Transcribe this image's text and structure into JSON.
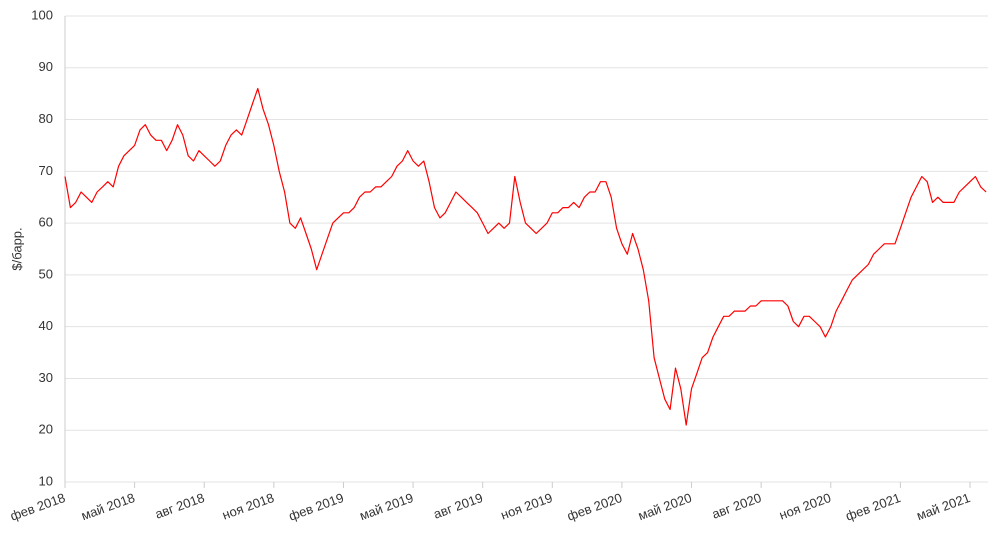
{
  "chart_data": {
    "type": "line",
    "y_label": "$/барр.",
    "color": "#ff0000",
    "ylim": [
      10,
      100
    ],
    "yticks": [
      10,
      20,
      30,
      40,
      50,
      60,
      70,
      80,
      90,
      100
    ],
    "grid": true,
    "categories": [
      "фев 2018",
      null,
      null,
      null,
      null,
      null,
      null,
      null,
      null,
      null,
      null,
      null,
      null,
      "май 2018",
      null,
      null,
      null,
      null,
      null,
      null,
      null,
      null,
      null,
      null,
      null,
      null,
      "авг 2018",
      null,
      null,
      null,
      null,
      null,
      null,
      null,
      null,
      null,
      null,
      null,
      null,
      "ноя 2018",
      null,
      null,
      null,
      null,
      null,
      null,
      null,
      null,
      null,
      null,
      null,
      null,
      "фев 2019",
      null,
      null,
      null,
      null,
      null,
      null,
      null,
      null,
      null,
      null,
      null,
      null,
      "май 2019",
      null,
      null,
      null,
      null,
      null,
      null,
      null,
      null,
      null,
      null,
      null,
      null,
      "авг 2019",
      null,
      null,
      null,
      null,
      null,
      null,
      null,
      null,
      null,
      null,
      null,
      null,
      "ноя 2019",
      null,
      null,
      null,
      null,
      null,
      null,
      null,
      null,
      null,
      null,
      null,
      null,
      "фев 2020",
      null,
      null,
      null,
      null,
      null,
      null,
      null,
      null,
      null,
      null,
      null,
      null,
      "май 2020",
      null,
      null,
      null,
      null,
      null,
      null,
      null,
      null,
      null,
      null,
      null,
      null,
      "авг 2020",
      null,
      null,
      null,
      null,
      null,
      null,
      null,
      null,
      null,
      null,
      null,
      null,
      "ноя 2020",
      null,
      null,
      null,
      null,
      null,
      null,
      null,
      null,
      null,
      null,
      null,
      null,
      "фев 2021",
      null,
      null,
      null,
      null,
      null,
      null,
      null,
      null,
      null,
      null,
      null,
      null,
      "май 2021",
      null,
      null,
      null
    ],
    "values": [
      69,
      63,
      64,
      66,
      65,
      64,
      66,
      67,
      68,
      67,
      71,
      73,
      74,
      75,
      78,
      79,
      77,
      76,
      76,
      74,
      76,
      79,
      77,
      73,
      72,
      74,
      73,
      72,
      71,
      72,
      75,
      77,
      78,
      77,
      80,
      83,
      86,
      82,
      79,
      75,
      70,
      66,
      60,
      59,
      61,
      58,
      55,
      51,
      54,
      57,
      60,
      61,
      62,
      62,
      63,
      65,
      66,
      66,
      67,
      67,
      68,
      69,
      71,
      72,
      74,
      72,
      71,
      72,
      68,
      63,
      61,
      62,
      64,
      66,
      65,
      64,
      63,
      62,
      60,
      58,
      59,
      60,
      59,
      60,
      69,
      64,
      60,
      59,
      58,
      59,
      60,
      62,
      62,
      63,
      63,
      64,
      63,
      65,
      66,
      66,
      68,
      68,
      65,
      59,
      56,
      54,
      58,
      55,
      51,
      45,
      34,
      30,
      26,
      24,
      32,
      28,
      21,
      28,
      31,
      34,
      35,
      38,
      40,
      42,
      42,
      43,
      43,
      43,
      44,
      44,
      45,
      45,
      45,
      45,
      45,
      44,
      41,
      40,
      42,
      42,
      41,
      40,
      38,
      40,
      43,
      45,
      47,
      49,
      50,
      51,
      52,
      54,
      55,
      56,
      56,
      56,
      59,
      62,
      65,
      67,
      69,
      68,
      64,
      65,
      64,
      64,
      64,
      66,
      67,
      68,
      69,
      67,
      66
    ]
  }
}
